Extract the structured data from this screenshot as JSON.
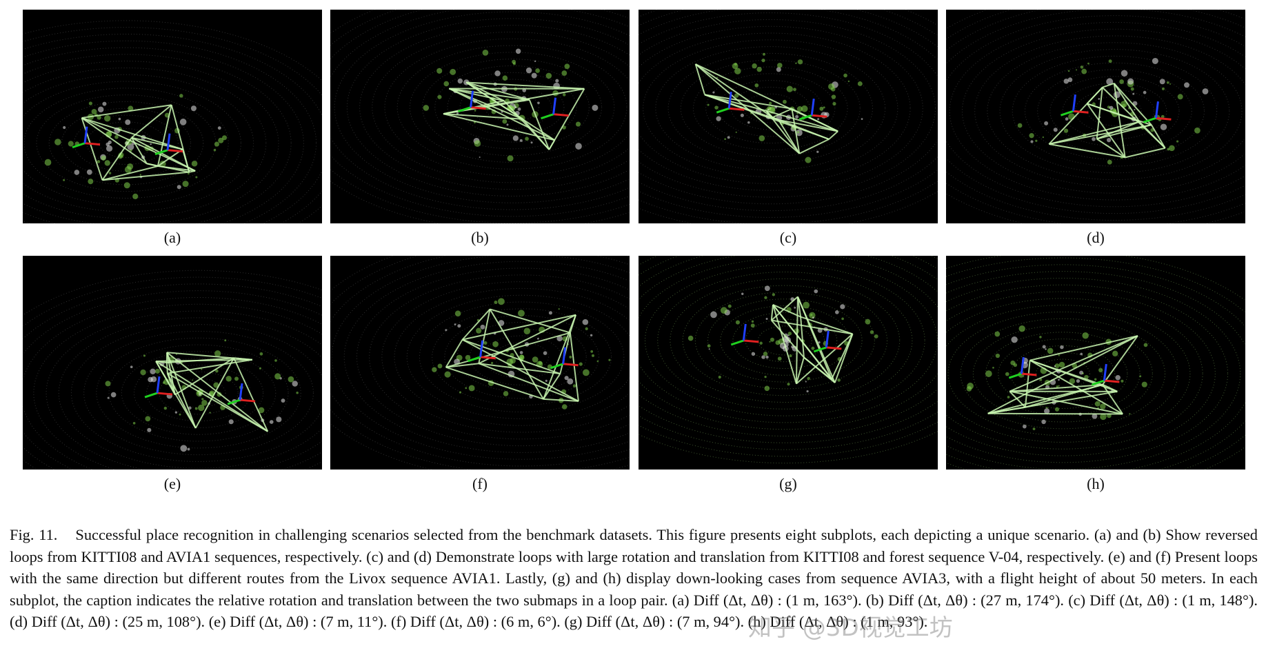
{
  "figure": {
    "panels": [
      {
        "label": "(a)"
      },
      {
        "label": "(b)"
      },
      {
        "label": "(c)"
      },
      {
        "label": "(d)"
      },
      {
        "label": "(e)"
      },
      {
        "label": "(f)"
      },
      {
        "label": "(g)"
      },
      {
        "label": "(h)"
      }
    ]
  },
  "caption": {
    "label": "Fig. 11.",
    "text": "Successful place recognition in challenging scenarios selected from the benchmark datasets. This figure presents eight subplots, each depicting a unique scenario. (a) and (b) Show reversed loops from KITTI08 and AVIA1 sequences, respectively. (c) and (d) Demonstrate loops with large rotation and translation from KITTI08 and forest sequence V-04, respectively. (e) and (f) Present loops with the same direction but different routes from the Livox sequence AVIA1. Lastly, (g) and (h) display down-looking cases from sequence AVIA3, with a flight height of about 50 meters. In each subplot, the caption indicates the relative rotation and translation between the two submaps in a loop pair. (a) Diff (Δt, Δθ) : (1 m, 163°). (b) Diff (Δt, Δθ) : (27 m, 174°). (c) Diff (Δt, Δθ) : (1 m, 148°). (d) Diff (Δt, Δθ) : (25 m, 108°). (e) Diff (Δt, Δθ) : (7 m, 11°). (f) Diff (Δt, Δθ) : (6 m, 6°). (g) Diff (Δt, Δθ) : (7 m, 94°). (h) Diff (Δt, Δθ) : (1 m, 93°)."
  },
  "watermark": "知乎 @3D视觉工坊"
}
